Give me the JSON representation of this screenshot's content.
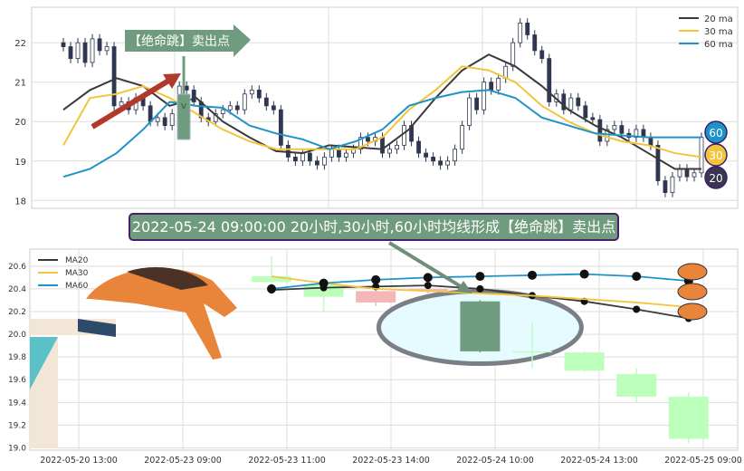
{
  "colors": {
    "ma20": "#3a3a3a",
    "ma30": "#f2c53d",
    "ma60": "#1f93c8",
    "candle_top": "#2e3650",
    "bull": "#f4b6b6",
    "bear": "#bbffbb",
    "highlight": "#6f9b7f",
    "annotation_bg": "#6f9b7f",
    "annotation_border": "#4b1f6f",
    "ellipse_fill": "#e6fbff",
    "ellipse_stroke": "#7a7f85"
  },
  "chart_data": [
    {
      "type": "candlestick",
      "title": "",
      "ylim": [
        17.8,
        22.9
      ],
      "yticks": [
        18,
        19,
        20,
        21,
        22
      ],
      "grid": true,
      "legend": {
        "placement": "top-right",
        "entries": [
          "20 ma",
          "30 ma",
          "60 ma"
        ]
      },
      "closes": [
        21.9,
        21.6,
        22.0,
        21.5,
        22.1,
        21.8,
        21.9,
        20.4,
        20.5,
        20.3,
        20.6,
        20.4,
        20.0,
        20.1,
        19.9,
        20.2,
        20.9,
        20.8,
        20.5,
        20.1,
        20.0,
        20.2,
        20.3,
        20.4,
        20.3,
        20.7,
        20.8,
        20.6,
        20.4,
        20.3,
        19.4,
        19.1,
        19.0,
        19.2,
        19.0,
        18.9,
        19.1,
        19.3,
        19.1,
        19.2,
        19.3,
        19.6,
        19.5,
        19.6,
        19.2,
        19.3,
        19.4,
        19.9,
        19.5,
        19.2,
        19.1,
        19.0,
        18.9,
        19.0,
        19.3,
        19.9,
        20.6,
        20.3,
        21.0,
        20.8,
        21.1,
        21.4,
        22.0,
        22.5,
        22.2,
        21.8,
        21.6,
        20.5,
        20.7,
        20.3,
        20.6,
        20.4,
        20.1,
        20.05,
        19.5,
        19.8,
        19.9,
        19.7,
        19.6,
        19.8,
        19.6,
        19.4,
        18.5,
        18.2,
        18.6,
        18.8,
        18.6,
        18.7,
        19.6
      ],
      "series": [
        {
          "name": "20 ma",
          "values": [
            20.3,
            20.8,
            21.1,
            20.9,
            20.4,
            20.6,
            20.0,
            19.6,
            19.25,
            19.2,
            19.4,
            19.35,
            19.3,
            19.8,
            20.6,
            21.3,
            21.7,
            21.4,
            20.9,
            20.3,
            19.9,
            19.6,
            19.2,
            18.8,
            18.8
          ]
        },
        {
          "name": "30 ma",
          "values": [
            19.4,
            20.6,
            20.7,
            20.9,
            20.6,
            20.2,
            19.8,
            19.5,
            19.3,
            19.3,
            19.3,
            19.3,
            19.6,
            20.3,
            20.8,
            21.4,
            21.3,
            21.0,
            20.4,
            20.0,
            19.7,
            19.5,
            19.4,
            19.2,
            19.1
          ]
        },
        {
          "name": "60 ma",
          "values": [
            18.6,
            18.8,
            19.2,
            19.8,
            20.5,
            20.4,
            20.35,
            19.9,
            19.7,
            19.55,
            19.3,
            19.5,
            19.8,
            20.4,
            20.6,
            20.75,
            20.8,
            20.6,
            20.1,
            19.9,
            19.7,
            19.65,
            19.6,
            19.6,
            19.6
          ]
        }
      ],
      "end_badges": [
        "60",
        "30",
        "20"
      ],
      "annotation": "【绝命跳】卖出点"
    },
    {
      "type": "candlestick",
      "title": "",
      "ylim": [
        18.98,
        20.75
      ],
      "yticks": [
        "19.0",
        "19.2",
        "19.4",
        "19.6",
        "19.8",
        "20.0",
        "20.2",
        "20.4",
        "20.6"
      ],
      "xtick_labels": [
        "2022-05-20 13:00",
        "2022-05-23 09:00",
        "2022-05-23 11:00",
        "2022-05-23 14:00",
        "2022-05-24 10:00",
        "2022-05-24 13:00",
        "2022-05-25 09:00"
      ],
      "grid": true,
      "legend": {
        "placement": "top-left",
        "entries": [
          "MA20",
          "MA30",
          "MA60"
        ]
      },
      "candles": [
        {
          "open": 20.51,
          "close": 20.46,
          "high": 20.69,
          "low": 20.4
        },
        {
          "open": 20.44,
          "close": 20.33,
          "high": 20.46,
          "low": 20.2
        },
        {
          "open": 20.28,
          "close": 20.38,
          "high": 20.4,
          "low": 20.25
        },
        {
          "open": 20.38,
          "close": 20.4,
          "high": 20.41,
          "low": 20.36
        },
        {
          "open": 20.29,
          "close": 19.85,
          "high": 20.3,
          "low": 19.84
        },
        {
          "open": 19.85,
          "close": 19.84,
          "high": 20.1,
          "low": 19.7
        },
        {
          "open": 19.84,
          "close": 19.68,
          "high": 19.85,
          "low": 19.67
        },
        {
          "open": 19.65,
          "close": 19.45,
          "high": 19.7,
          "low": 19.4
        },
        {
          "open": 19.45,
          "close": 19.08,
          "high": 19.49,
          "low": 19.04
        }
      ],
      "highlight_index": 4,
      "series": [
        {
          "name": "MA20",
          "values": [
            20.39,
            20.41,
            20.42,
            20.43,
            20.4,
            20.34,
            20.29,
            20.22,
            20.14
          ]
        },
        {
          "name": "MA30",
          "values": [
            20.51,
            20.45,
            20.4,
            20.38,
            20.36,
            20.34,
            20.31,
            20.28,
            20.24
          ]
        },
        {
          "name": "MA60",
          "values": [
            20.4,
            20.45,
            20.48,
            20.5,
            20.51,
            20.52,
            20.53,
            20.51,
            20.47
          ]
        }
      ]
    }
  ],
  "banner": "2022-05-24 09:00:00 20小时,30小时,60小时均线形成【绝命跳】卖出点"
}
